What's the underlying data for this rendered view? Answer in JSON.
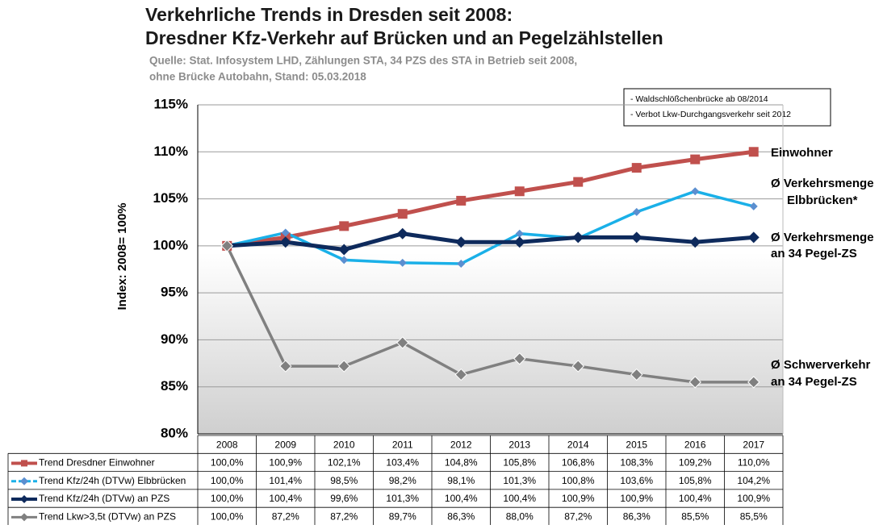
{
  "chart_data": {
    "type": "line",
    "title": [
      "Verkehrliche Trends in Dresden seit 2008:",
      "Dresdner Kfz-Verkehr auf Brücken und an Pegelzählstellen"
    ],
    "subtitle": [
      "Quelle: Stat. Infosystem LHD, Zählungen STA, 34 PZS des STA in Betrieb seit 2008,",
      "ohne Brücke Autobahn, Stand: 05.03.2018"
    ],
    "y_label": "Index: 2008= 100%",
    "notes": [
      "- Waldschlößchenbrücke ab 08/2014",
      "- Verbot Lkw-Durchgangsverkehr seit 2012"
    ],
    "line_labels": [
      [
        "Einwohner"
      ],
      [
        "Ø Verkehrsmenge",
        "Elbbrücken*"
      ],
      [
        "Ø Verkehrsmenge",
        "an 34 Pegel-ZS"
      ],
      [
        "Ø Schwerverkehr",
        "an 34 Pegel-ZS"
      ]
    ],
    "categories": [
      "2008",
      "2009",
      "2010",
      "2011",
      "2012",
      "2013",
      "2014",
      "2015",
      "2016",
      "2017"
    ],
    "ylim": [
      80,
      115
    ],
    "yticks": [
      {
        "value": 80,
        "label": "80%"
      },
      {
        "value": 85,
        "label": "85%"
      },
      {
        "value": 90,
        "label": "90%"
      },
      {
        "value": 95,
        "label": "95%"
      },
      {
        "value": 100,
        "label": "100%"
      },
      {
        "value": 105,
        "label": "105%"
      },
      {
        "value": 110,
        "label": "110%"
      },
      {
        "value": 115,
        "label": "115%"
      }
    ],
    "grid": true,
    "series": [
      {
        "name": "Trend Dresdner Einwohner",
        "color": "#c0504d",
        "marker": "square",
        "values": [
          100,
          100.9,
          102.1,
          103.4,
          104.8,
          105.8,
          106.8,
          108.3,
          109.2,
          110.0
        ],
        "value_labels": [
          "100,0%",
          "100,9%",
          "102,1%",
          "103,4%",
          "104,8%",
          "105,8%",
          "106,8%",
          "108,3%",
          "109,2%",
          "110,0%"
        ]
      },
      {
        "name": "Trend Kfz/24h (DTVw) Elbbrücken",
        "color": "#1ab0e8",
        "marker_color": "#5b8fd0",
        "marker": "small-diamond",
        "values": [
          100,
          101.4,
          98.5,
          98.2,
          98.1,
          101.3,
          100.8,
          103.6,
          105.8,
          104.2
        ],
        "value_labels": [
          "100,0%",
          "101,4%",
          "98,5%",
          "98,2%",
          "98,1%",
          "101,3%",
          "100,8%",
          "103,6%",
          "105,8%",
          "104,2%"
        ]
      },
      {
        "name": "Trend Kfz/24h (DTVw) an PZS",
        "color": "#0e2a5c",
        "marker": "diamond",
        "values": [
          100,
          100.4,
          99.6,
          101.3,
          100.4,
          100.4,
          100.9,
          100.9,
          100.4,
          100.9
        ],
        "value_labels": [
          "100,0%",
          "100,4%",
          "99,6%",
          "101,3%",
          "100,4%",
          "100,4%",
          "100,9%",
          "100,9%",
          "100,4%",
          "100,9%"
        ]
      },
      {
        "name": "Trend Lkw>3,5t (DTVw) an PZS",
        "color": "#808080",
        "marker": "diamond",
        "values": [
          100,
          87.2,
          87.2,
          89.7,
          86.3,
          88.0,
          87.2,
          86.3,
          85.5,
          85.5
        ],
        "value_labels": [
          "100,0%",
          "87,2%",
          "87,2%",
          "89,7%",
          "86,3%",
          "88,0%",
          "87,2%",
          "86,3%",
          "85,5%",
          "85,5%"
        ]
      }
    ]
  }
}
